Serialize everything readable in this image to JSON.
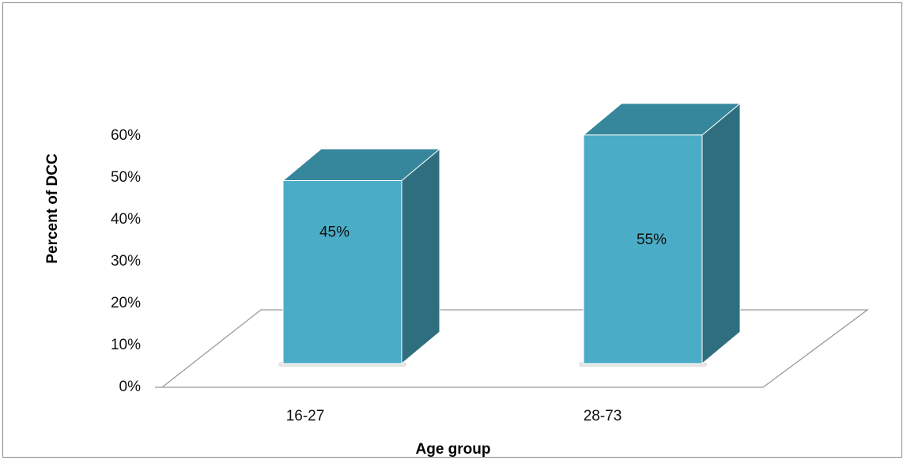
{
  "chart_data": {
    "type": "bar",
    "style": "3d-column",
    "categories": [
      "16-27",
      "28-73"
    ],
    "values": [
      45,
      55
    ],
    "data_labels": [
      "45%",
      "55%"
    ],
    "xlabel": "Age group",
    "ylabel": "Percent of DCC",
    "ylim": [
      0,
      60
    ],
    "yticks": [
      "0%",
      "10%",
      "20%",
      "30%",
      "40%",
      "50%",
      "60%"
    ],
    "grid": false,
    "legend": "none",
    "colors": {
      "front": "#4aacc6",
      "top": "#36869c",
      "side": "#2f6e7e",
      "floor": "#9a9a9a",
      "frame": "#888888"
    }
  }
}
